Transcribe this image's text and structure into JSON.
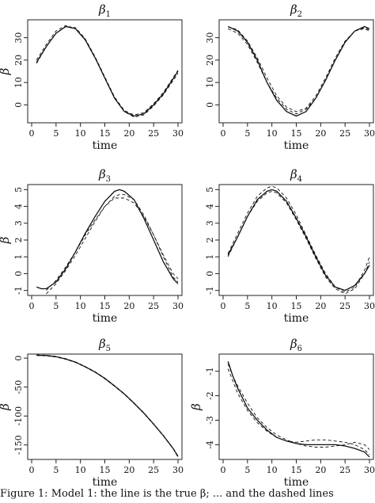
{
  "caption": "Figure 1: Model 1: the line is the true β; ... and the dashed lines",
  "chart_data": [
    {
      "type": "line",
      "title": "β1",
      "xlabel": "time",
      "ylabel": "β",
      "xlim": [
        0,
        30
      ],
      "ylim": [
        -8,
        38
      ],
      "xticks": [
        "0",
        "5",
        "10",
        "15",
        "20",
        "25",
        "30"
      ],
      "yticks": [
        "0",
        "10",
        "20",
        "30"
      ],
      "ytick_values": [
        0,
        10,
        20,
        30
      ],
      "series": [
        {
          "style": "solid",
          "x": [
            1,
            3,
            5,
            7,
            9,
            11,
            13,
            15,
            17,
            19,
            21,
            23,
            25,
            27,
            30
          ],
          "y": [
            19,
            26,
            32,
            35,
            34,
            29,
            21,
            12,
            3,
            -3,
            -5,
            -4,
            0,
            5,
            15
          ]
        },
        {
          "style": "dashed",
          "x": [
            1,
            3,
            5,
            7,
            9,
            11,
            13,
            15,
            17,
            19,
            21,
            23,
            25,
            27,
            30
          ],
          "y": [
            20,
            27,
            33,
            35.5,
            34,
            29,
            21,
            12,
            3,
            -3,
            -5.5,
            -4.5,
            -0.5,
            4.5,
            14
          ]
        },
        {
          "style": "dashed",
          "x": [
            1,
            3,
            5,
            7,
            9,
            11,
            13,
            15,
            17,
            19,
            21,
            23,
            25,
            27,
            30
          ],
          "y": [
            18.5,
            26,
            32,
            35,
            34.5,
            29.5,
            21.5,
            12.5,
            3.5,
            -2.5,
            -4.5,
            -3.5,
            0.5,
            5.5,
            15.5
          ]
        }
      ]
    },
    {
      "type": "line",
      "title": "β2",
      "xlabel": "time",
      "ylabel": "",
      "xlim": [
        0,
        30
      ],
      "ylim": [
        -8,
        38
      ],
      "xticks": [
        "0",
        "5",
        "10",
        "15",
        "20",
        "25",
        "30"
      ],
      "yticks": [
        "0",
        "10",
        "20",
        "30"
      ],
      "ytick_values": [
        0,
        10,
        20,
        30
      ],
      "series": [
        {
          "style": "solid",
          "x": [
            1,
            3,
            5,
            7,
            9,
            11,
            13,
            15,
            17,
            19,
            21,
            23,
            25,
            27,
            29,
            30
          ],
          "y": [
            35,
            33,
            28,
            20,
            10,
            2,
            -3,
            -5,
            -3,
            3,
            11,
            20,
            28,
            33,
            35,
            34
          ]
        },
        {
          "style": "dashed",
          "x": [
            1,
            3,
            5,
            7,
            9,
            11,
            13,
            15,
            17,
            19,
            21,
            23,
            25,
            27,
            29,
            30
          ],
          "y": [
            34,
            32,
            27,
            19,
            10,
            3,
            -2,
            -4,
            -2,
            3,
            11,
            20,
            28,
            33,
            34,
            33
          ]
        },
        {
          "style": "dashed",
          "x": [
            1,
            3,
            5,
            7,
            9,
            11,
            13,
            15,
            17,
            19,
            21,
            23,
            25,
            27,
            29,
            30
          ],
          "y": [
            35,
            33.5,
            28.5,
            21,
            12,
            4,
            -1,
            -3,
            -1.5,
            4,
            12,
            21,
            28.5,
            33,
            34.5,
            33.5
          ]
        }
      ]
    },
    {
      "type": "line",
      "title": "β3",
      "xlabel": "time",
      "ylabel": "β",
      "xlim": [
        0,
        30
      ],
      "ylim": [
        -1.3,
        5.3
      ],
      "xticks": [
        "0",
        "5",
        "10",
        "15",
        "20",
        "25",
        "30"
      ],
      "yticks": [
        "-1",
        "0",
        "1",
        "2",
        "3",
        "4",
        "5"
      ],
      "ytick_values": [
        -1,
        0,
        1,
        2,
        3,
        4,
        5
      ],
      "series": [
        {
          "style": "solid",
          "x": [
            1,
            2,
            3,
            5,
            7,
            9,
            11,
            13,
            15,
            17,
            18,
            19,
            21,
            23,
            25,
            27,
            29,
            30
          ],
          "y": [
            -0.8,
            -0.9,
            -0.9,
            -0.5,
            0.3,
            1.3,
            2.4,
            3.4,
            4.3,
            4.9,
            5.0,
            4.9,
            4.4,
            3.3,
            2.0,
            0.7,
            -0.3,
            -0.6
          ]
        },
        {
          "style": "dashed",
          "x": [
            3,
            4,
            5,
            7,
            9,
            11,
            13,
            15,
            17,
            18,
            19,
            21,
            23,
            25,
            27,
            29,
            30
          ],
          "y": [
            -1.2,
            -0.9,
            -0.6,
            0.2,
            1.1,
            2.1,
            3.1,
            4.0,
            4.6,
            4.7,
            4.7,
            4.4,
            3.5,
            2.3,
            1.0,
            -0.2,
            -0.5
          ]
        },
        {
          "style": "dashed",
          "x": [
            3,
            4,
            5,
            7,
            9,
            11,
            13,
            15,
            17,
            18,
            19,
            21,
            23,
            25,
            27,
            29,
            30
          ],
          "y": [
            -1.0,
            -0.7,
            -0.4,
            0.4,
            1.3,
            2.3,
            3.2,
            4.0,
            4.5,
            4.5,
            4.5,
            4.2,
            3.4,
            2.3,
            1.1,
            0.0,
            -0.3
          ]
        }
      ]
    },
    {
      "type": "line",
      "title": "β4",
      "xlabel": "time",
      "ylabel": "",
      "xlim": [
        0,
        30
      ],
      "ylim": [
        -1.3,
        5.3
      ],
      "xticks": [
        "0",
        "5",
        "10",
        "15",
        "20",
        "25",
        "30"
      ],
      "yticks": [
        "-1",
        "0",
        "1",
        "2",
        "3",
        "4",
        "5"
      ],
      "ytick_values": [
        -1,
        0,
        1,
        2,
        3,
        4,
        5
      ],
      "series": [
        {
          "style": "solid",
          "x": [
            1,
            3,
            5,
            7,
            9,
            10,
            11,
            13,
            15,
            17,
            19,
            21,
            23,
            25,
            27,
            29,
            30
          ],
          "y": [
            1.1,
            2.2,
            3.4,
            4.4,
            4.9,
            5.0,
            4.9,
            4.3,
            3.3,
            2.2,
            1.0,
            -0.1,
            -0.8,
            -1.0,
            -0.7,
            0.0,
            0.5
          ]
        },
        {
          "style": "dashed",
          "x": [
            1,
            3,
            5,
            7,
            9,
            10,
            11,
            13,
            15,
            17,
            19,
            21,
            23,
            25,
            27,
            29,
            30
          ],
          "y": [
            1.2,
            2.4,
            3.6,
            4.6,
            5.1,
            5.2,
            5.1,
            4.5,
            3.5,
            2.3,
            1.1,
            0.0,
            -0.8,
            -1.1,
            -0.8,
            0.2,
            1.0
          ]
        },
        {
          "style": "dashed",
          "x": [
            1,
            3,
            5,
            7,
            9,
            10,
            11,
            13,
            15,
            17,
            19,
            21,
            23,
            25,
            27,
            29,
            30
          ],
          "y": [
            1.0,
            2.2,
            3.4,
            4.3,
            4.8,
            4.9,
            4.8,
            4.2,
            3.2,
            2.1,
            0.9,
            -0.2,
            -0.9,
            -1.2,
            -0.9,
            0.0,
            0.7
          ]
        }
      ]
    },
    {
      "type": "line",
      "title": "β5",
      "xlabel": "time",
      "ylabel": "β",
      "xlim": [
        0,
        30
      ],
      "ylim": [
        -175,
        7
      ],
      "xticks": [
        "0",
        "5",
        "10",
        "15",
        "20",
        "25",
        "30"
      ],
      "yticks": [
        "0",
        "-50",
        "-100",
        "-150"
      ],
      "ytick_values": [
        0,
        -50,
        -100,
        -150
      ],
      "series": [
        {
          "style": "solid",
          "x": [
            1,
            3,
            5,
            7,
            9,
            11,
            13,
            15,
            17,
            19,
            21,
            23,
            25,
            27,
            29,
            30
          ],
          "y": [
            5,
            4.5,
            2.5,
            -1.5,
            -7,
            -15,
            -24,
            -35,
            -48,
            -62,
            -78,
            -95,
            -114,
            -134,
            -156,
            -170
          ]
        },
        {
          "style": "dashed",
          "x": [
            1,
            3,
            5,
            7,
            9,
            11,
            13,
            15,
            17,
            19,
            21,
            23,
            25,
            27,
            29,
            30
          ],
          "y": [
            5.5,
            5,
            3,
            -1,
            -6.5,
            -14.5,
            -23.5,
            -34.5,
            -47.5,
            -61.5,
            -77.5,
            -94.5,
            -113.5,
            -133.5,
            -155.5,
            -169
          ]
        },
        {
          "style": "dashed",
          "x": [
            1,
            3,
            5,
            7,
            9,
            11,
            13,
            15,
            17,
            19,
            21,
            23,
            25,
            27,
            29,
            30
          ],
          "y": [
            4.5,
            4,
            2,
            -2,
            -7.5,
            -15.5,
            -24.5,
            -35.5,
            -48.5,
            -62.5,
            -78.5,
            -95.5,
            -114.5,
            -134.5,
            -156.5,
            -171
          ]
        }
      ]
    },
    {
      "type": "line",
      "title": "β6",
      "xlabel": "time",
      "ylabel": "β",
      "xlim": [
        0,
        30
      ],
      "ylim": [
        -4.6,
        -0.3
      ],
      "xticks": [
        "0",
        "5",
        "10",
        "15",
        "20",
        "25",
        "30"
      ],
      "yticks": [
        "-1",
        "-2",
        "-3",
        "-4"
      ],
      "ytick_values": [
        -1,
        -2,
        -3,
        -4
      ],
      "series": [
        {
          "style": "solid",
          "x": [
            1,
            2,
            3,
            5,
            7,
            9,
            11,
            13,
            15,
            17,
            19,
            21,
            23,
            25,
            27,
            29,
            30
          ],
          "y": [
            -0.6,
            -1.2,
            -1.7,
            -2.5,
            -3.0,
            -3.4,
            -3.7,
            -3.85,
            -3.95,
            -4.0,
            -4.0,
            -4.0,
            -4.0,
            -4.05,
            -4.15,
            -4.3,
            -4.5
          ]
        },
        {
          "style": "dashed",
          "x": [
            1,
            2,
            3,
            5,
            7,
            9,
            11,
            13,
            15,
            17,
            19,
            21,
            23,
            25,
            27,
            29,
            30
          ],
          "y": [
            -0.9,
            -1.4,
            -1.9,
            -2.6,
            -3.1,
            -3.45,
            -3.7,
            -3.85,
            -3.9,
            -3.85,
            -3.8,
            -3.8,
            -3.85,
            -3.9,
            -4.0,
            -4.2,
            -4.4
          ]
        },
        {
          "style": "dashed",
          "x": [
            1,
            2,
            3,
            5,
            7,
            9,
            11,
            13,
            15,
            17,
            19,
            21,
            23,
            25,
            27,
            29,
            30
          ],
          "y": [
            -0.7,
            -1.2,
            -1.6,
            -2.3,
            -2.9,
            -3.3,
            -3.6,
            -3.8,
            -3.95,
            -4.05,
            -4.1,
            -4.1,
            -4.05,
            -4.0,
            -3.9,
            -4.0,
            -4.2
          ]
        }
      ]
    }
  ]
}
